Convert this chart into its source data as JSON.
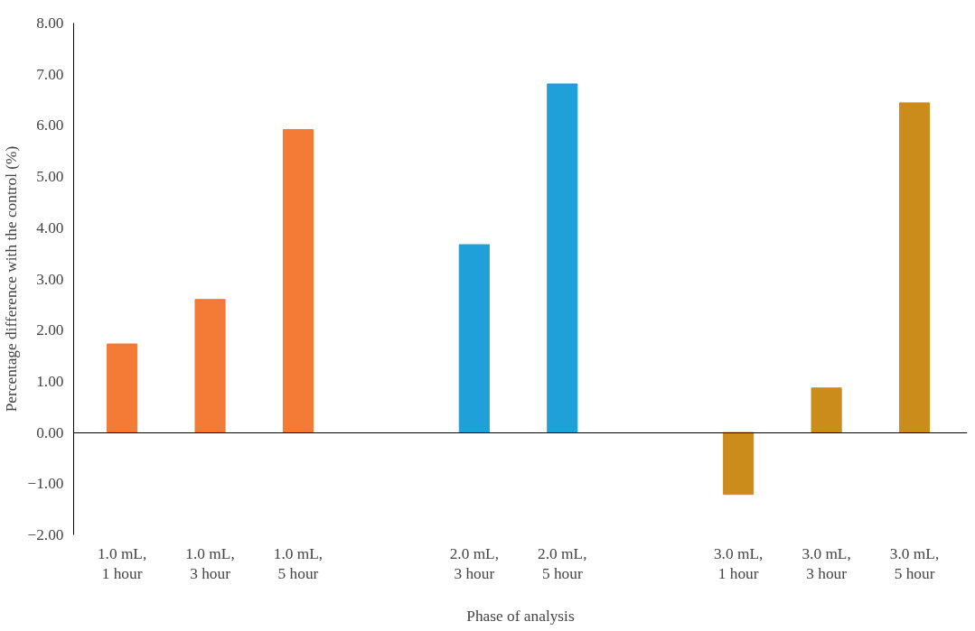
{
  "chart_data": {
    "type": "bar",
    "xlabel": "Phase of analysis",
    "ylabel": "Percentage difference with the control (%)",
    "categories": [
      "1.0 mL,\n1 hour",
      "1.0 mL,\n3 hour",
      "1.0 mL,\n5 hour",
      null,
      "2.0 mL,\n3 hour",
      "2.0 mL,\n5 hour",
      null,
      "3.0 mL,\n1 hour",
      "3.0 mL,\n3 hour",
      "3.0 mL,\n5 hour"
    ],
    "values": [
      1.73,
      2.6,
      5.92,
      null,
      3.67,
      6.81,
      null,
      -1.21,
      0.87,
      6.44
    ],
    "colors": [
      "#f47b35",
      "#f47b35",
      "#f47b35",
      null,
      "#1fa0d8",
      "#1fa0d8",
      null,
      "#cc8c1c",
      "#cc8c1c",
      "#cc8c1c"
    ],
    "ylim": [
      -2,
      8
    ],
    "yticks": [
      {
        "value": -2,
        "label": "−2.00"
      },
      {
        "value": -1,
        "label": "−1.00"
      },
      {
        "value": 0,
        "label": "0.00"
      },
      {
        "value": 1,
        "label": "1.00"
      },
      {
        "value": 2,
        "label": "2.00"
      },
      {
        "value": 3,
        "label": "3.00"
      },
      {
        "value": 4,
        "label": "4.00"
      },
      {
        "value": 5,
        "label": "5.00"
      },
      {
        "value": 6,
        "label": "6.00"
      },
      {
        "value": 7,
        "label": "7.00"
      },
      {
        "value": 8,
        "label": "8.00"
      }
    ]
  }
}
